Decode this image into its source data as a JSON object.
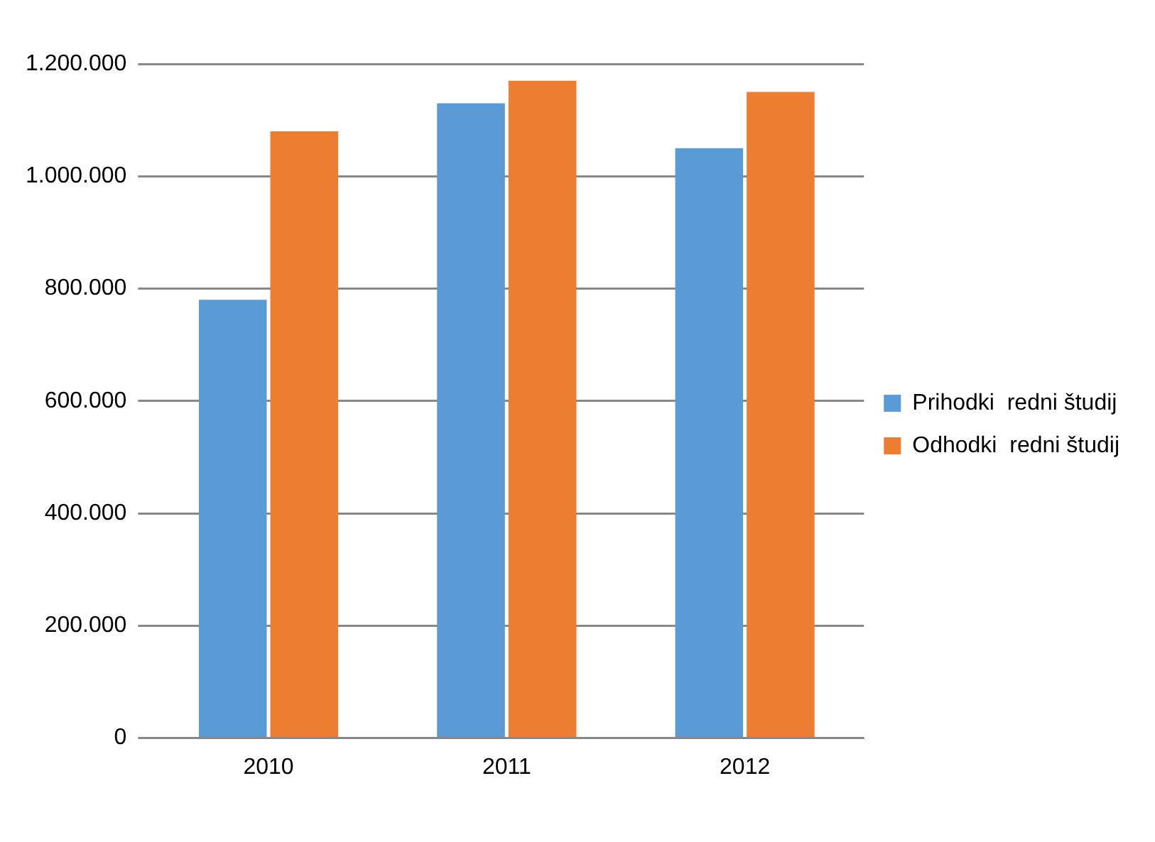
{
  "chart_data": {
    "type": "bar",
    "categories": [
      "2010",
      "2011",
      "2012"
    ],
    "series": [
      {
        "name": "Prihodki  redni študij",
        "color": "#5b9bd5",
        "values": [
          780000,
          1130000,
          1050000
        ]
      },
      {
        "name": "Odhodki  redni študij",
        "color": "#ed7d31",
        "values": [
          1080000,
          1170000,
          1150000
        ]
      }
    ],
    "ylim": [
      0,
      1200000
    ],
    "yticks": [
      {
        "value": 0,
        "label": "0"
      },
      {
        "value": 200000,
        "label": "200.000"
      },
      {
        "value": 400000,
        "label": "400.000"
      },
      {
        "value": 600000,
        "label": "600.000"
      },
      {
        "value": 800000,
        "label": "800.000"
      },
      {
        "value": 1000000,
        "label": "1.000.000"
      },
      {
        "value": 1200000,
        "label": "1.200.000"
      }
    ],
    "grid": "y",
    "legend": "right"
  }
}
